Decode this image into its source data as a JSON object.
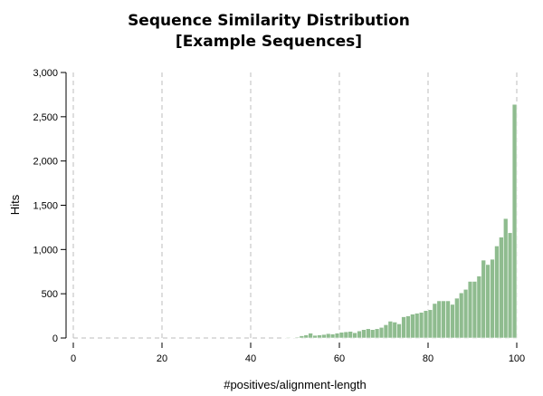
{
  "chart_data": {
    "type": "bar",
    "title": [
      "Sequence Similarity Distribution",
      "[Example Sequences]"
    ],
    "xlabel": "#positives/alignment-length",
    "ylabel": "Hits",
    "xlim": [
      0,
      100
    ],
    "ylim": [
      0,
      3000
    ],
    "x_ticks": [
      0,
      20,
      40,
      60,
      80,
      100
    ],
    "x_tick_labels": [
      "0",
      "20",
      "40",
      "60",
      "80",
      "100"
    ],
    "y_ticks": [
      0,
      500,
      1000,
      1500,
      2000,
      2500,
      3000
    ],
    "y_tick_labels": [
      "0",
      "500",
      "1,000",
      "1,500",
      "2,000",
      "2,500",
      "3,000"
    ],
    "grid": "vertical dashed",
    "bar_color": "#8fbc8f",
    "bin_width": 1,
    "bin_starts": [
      0,
      1,
      2,
      3,
      4,
      5,
      6,
      7,
      8,
      9,
      10,
      11,
      12,
      13,
      14,
      15,
      16,
      17,
      18,
      19,
      20,
      21,
      22,
      23,
      24,
      25,
      26,
      27,
      28,
      29,
      30,
      31,
      32,
      33,
      34,
      35,
      36,
      37,
      38,
      39,
      40,
      41,
      42,
      43,
      44,
      45,
      46,
      47,
      48,
      49,
      50,
      51,
      52,
      53,
      54,
      55,
      56,
      57,
      58,
      59,
      60,
      61,
      62,
      63,
      64,
      65,
      66,
      67,
      68,
      69,
      70,
      71,
      72,
      73,
      74,
      75,
      76,
      77,
      78,
      79,
      80,
      81,
      82,
      83,
      84,
      85,
      86,
      87,
      88,
      89,
      90,
      91,
      92,
      93,
      94,
      95,
      96,
      97,
      98,
      99
    ],
    "values": [
      0,
      0,
      0,
      0,
      0,
      0,
      0,
      0,
      0,
      0,
      0,
      0,
      0,
      0,
      0,
      0,
      0,
      0,
      0,
      0,
      0,
      0,
      0,
      0,
      0,
      0,
      0,
      0,
      0,
      0,
      0,
      0,
      0,
      0,
      0,
      0,
      0,
      0,
      0,
      0,
      0,
      0,
      0,
      0,
      0,
      0,
      0,
      5,
      8,
      5,
      10,
      25,
      35,
      55,
      30,
      35,
      40,
      50,
      45,
      55,
      65,
      70,
      75,
      60,
      80,
      95,
      105,
      95,
      105,
      120,
      150,
      190,
      180,
      160,
      240,
      250,
      270,
      280,
      290,
      310,
      320,
      390,
      420,
      420,
      420,
      380,
      450,
      510,
      550,
      640,
      640,
      700,
      880,
      830,
      890,
      1040,
      1140,
      1350,
      1190,
      2640
    ]
  }
}
